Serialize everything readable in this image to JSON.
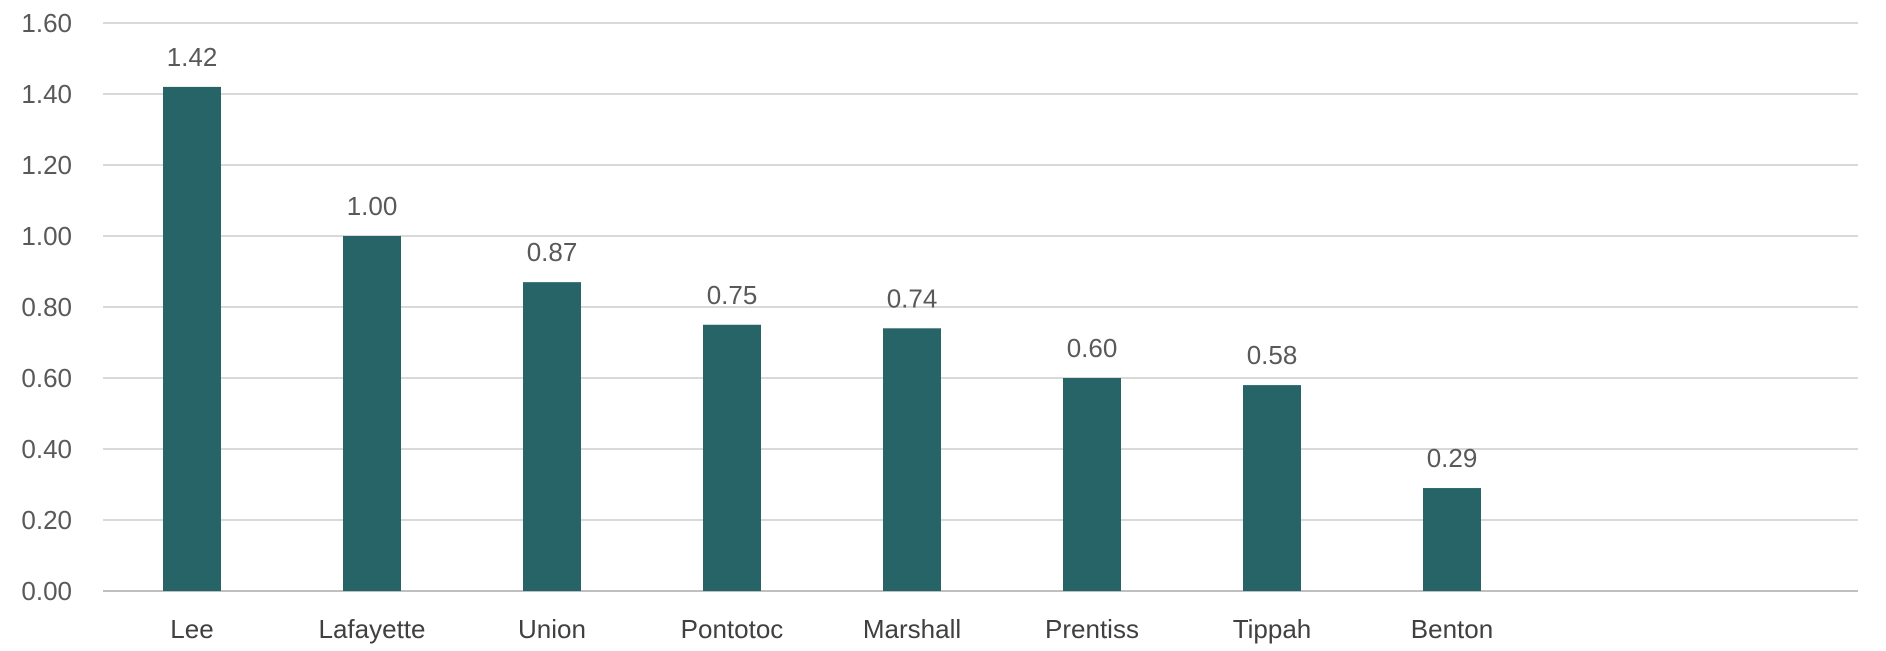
{
  "chart_data": {
    "type": "bar",
    "categories": [
      "Lee",
      "Lafayette",
      "Union",
      "Pontotoc",
      "Marshall",
      "Prentiss",
      "Tippah",
      "Benton"
    ],
    "values": [
      1.42,
      1.0,
      0.87,
      0.75,
      0.74,
      0.6,
      0.58,
      0.29
    ],
    "value_labels": [
      "1.42",
      "1.00",
      "0.87",
      "0.75",
      "0.74",
      "0.60",
      "0.58",
      "0.29"
    ],
    "ylim": [
      0,
      1.6
    ],
    "y_ticks": [
      0,
      0.2,
      0.4,
      0.6,
      0.8,
      1.0,
      1.2,
      1.4,
      1.6
    ],
    "y_tick_labels": [
      "0.00",
      "0.20",
      "0.40",
      "0.60",
      "0.80",
      "1.00",
      "1.20",
      "1.40",
      "1.60"
    ],
    "title": "",
    "xlabel": "",
    "ylabel": "",
    "grid": true,
    "legend": "none",
    "bar_color": "#276468"
  }
}
